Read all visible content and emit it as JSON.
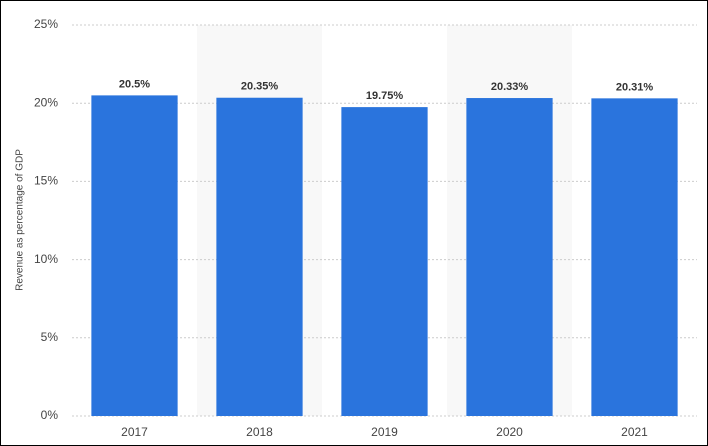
{
  "chart_data": {
    "type": "bar",
    "y_label": "Revenue as percentage of GDP",
    "categories": [
      "2017",
      "2018",
      "2019",
      "2020",
      "2021"
    ],
    "values": [
      20.5,
      20.35,
      19.75,
      20.33,
      20.31
    ],
    "value_labels": [
      "20.5%",
      "20.35%",
      "19.75%",
      "20.33%",
      "20.31%"
    ],
    "color": "#2a74dd",
    "ylim": [
      0,
      25
    ],
    "yticks": [
      {
        "value": 0,
        "label": "0%"
      },
      {
        "value": 5,
        "label": "5%"
      },
      {
        "value": 10,
        "label": "10%"
      },
      {
        "value": 15,
        "label": "15%"
      },
      {
        "value": 20,
        "label": "20%"
      },
      {
        "value": 25,
        "label": "25%"
      }
    ],
    "grid": true
  }
}
